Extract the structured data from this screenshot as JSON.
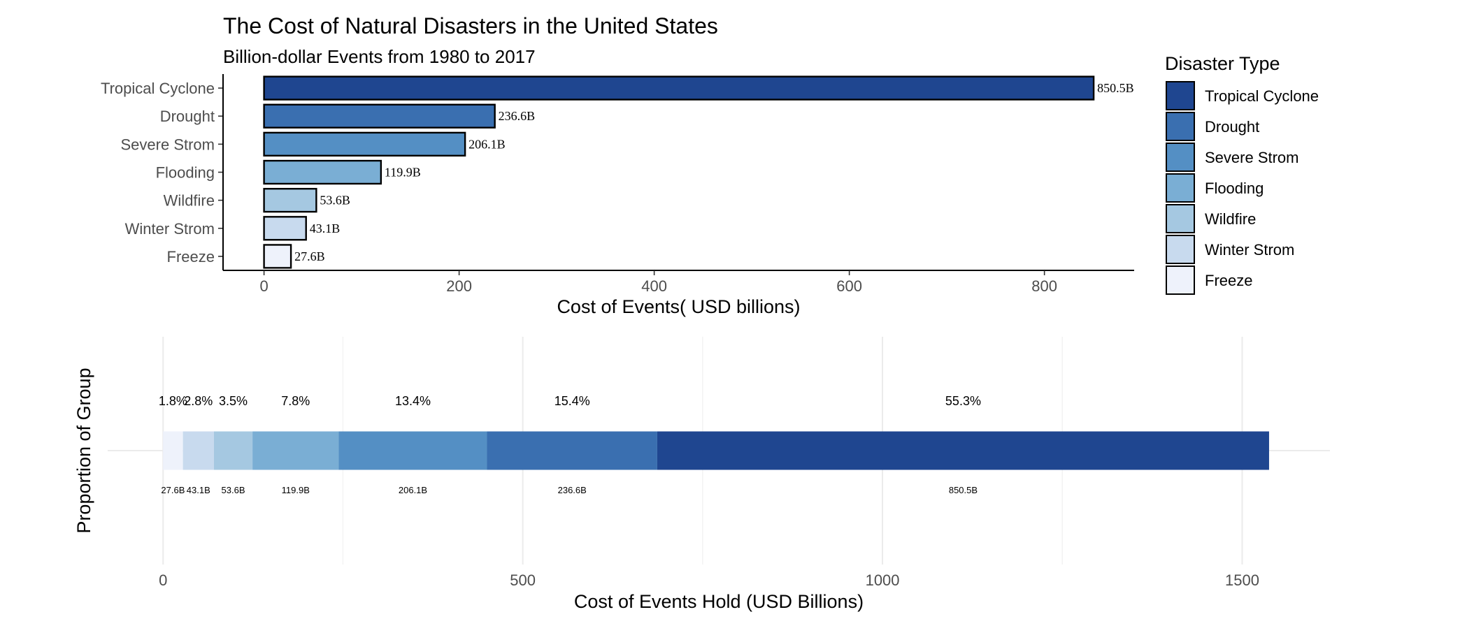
{
  "chart_data": [
    {
      "type": "bar",
      "orientation": "horizontal",
      "title": "The Cost of Natural Disasters in the United States",
      "subtitle": "Billion-dollar Events from 1980 to 2017",
      "xlabel": "Cost of Events( USD billions)",
      "ylabel": "",
      "xlim": [
        -42,
        892
      ],
      "xticks": [
        0,
        200,
        400,
        600,
        800
      ],
      "categories": [
        "Tropical Cyclone",
        "Drought",
        "Severe Strom",
        "Flooding",
        "Wildfire",
        "Winter Strom",
        "Freeze"
      ],
      "values": [
        850.5,
        236.6,
        206.1,
        119.9,
        53.6,
        43.1,
        27.6
      ],
      "value_labels": [
        "850.5B",
        "236.6B",
        "206.1B",
        "119.9B",
        "53.6B",
        "43.1B",
        "27.6B"
      ],
      "colors": [
        "#1f4690",
        "#3a6fb0",
        "#548fc4",
        "#7aaed4",
        "#a5c8e1",
        "#c8daee",
        "#eef2fb"
      ],
      "legend": {
        "title": "Disaster Type",
        "position": "right",
        "entries": [
          "Tropical Cyclone",
          "Drought",
          "Severe Strom",
          "Flooding",
          "Wildfire",
          "Winter Strom",
          "Freeze"
        ]
      },
      "grid": false
    },
    {
      "type": "bar",
      "stacked": true,
      "orientation": "horizontal",
      "xlabel": "Cost of Events Hold (USD Billions)",
      "ylabel": "Proportion of Group",
      "xlim": [
        -77,
        1622
      ],
      "xticks": [
        0,
        500,
        1000,
        1500
      ],
      "grid": true,
      "segments": [
        {
          "category": "Freeze",
          "value": 27.6,
          "value_label": "27.6B",
          "percent_label": "1.8%",
          "color": "#eef2fb"
        },
        {
          "category": "Winter Strom",
          "value": 43.1,
          "value_label": "43.1B",
          "percent_label": "2.8%",
          "color": "#c8daee"
        },
        {
          "category": "Wildfire",
          "value": 53.6,
          "value_label": "53.6B",
          "percent_label": "3.5%",
          "color": "#a5c8e1"
        },
        {
          "category": "Flooding",
          "value": 119.9,
          "value_label": "119.9B",
          "percent_label": "7.8%",
          "color": "#7aaed4"
        },
        {
          "category": "Severe Strom",
          "value": 206.1,
          "value_label": "206.1B",
          "percent_label": "13.4%",
          "color": "#548fc4"
        },
        {
          "category": "Drought",
          "value": 236.6,
          "value_label": "236.6B",
          "percent_label": "15.4%",
          "color": "#3a6fb0"
        },
        {
          "category": "Tropical Cyclone",
          "value": 850.5,
          "value_label": "850.5B",
          "percent_label": "55.3%",
          "color": "#1f4690"
        }
      ]
    }
  ]
}
